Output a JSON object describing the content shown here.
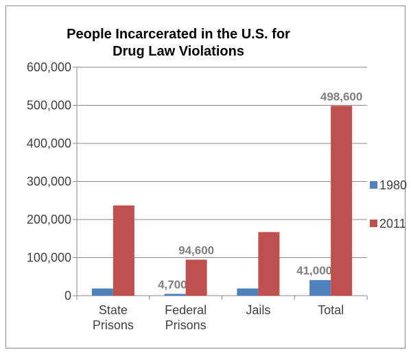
{
  "chart_data": {
    "type": "bar",
    "title_lines": [
      "People Incarcerated  in the U.S. for",
      "Drug Law Violations"
    ],
    "categories": [
      [
        "State",
        "Prisons"
      ],
      [
        "Federal",
        "Prisons"
      ],
      [
        "Jails"
      ],
      [
        "Total"
      ]
    ],
    "series": [
      {
        "name": "1980",
        "color": "#4f81bd",
        "values": [
          19000,
          4700,
          19000,
          41000
        ],
        "data_labels": [
          null,
          "4,700",
          null,
          "41,000"
        ]
      },
      {
        "name": "2011",
        "color": "#c0504d",
        "values": [
          237000,
          94600,
          167000,
          498600
        ],
        "data_labels": [
          null,
          "94,600",
          null,
          "498,600"
        ]
      }
    ],
    "ylim": [
      0,
      600000
    ],
    "y_ticks": [
      0,
      100000,
      200000,
      300000,
      400000,
      500000,
      600000
    ],
    "y_tick_labels": [
      "0",
      "100,000",
      "200,000",
      "300,000",
      "400,000",
      "500,000",
      "600,000"
    ],
    "grid": true,
    "legend_position": "right"
  }
}
